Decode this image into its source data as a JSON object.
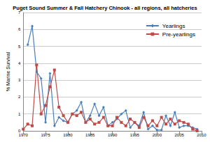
{
  "chart_data": {
    "type": "line",
    "title": "Puget Sound Summer & Fall Hatchery Chinook - all regions, all hatcheries",
    "y_label": "% Marine Survival",
    "x": [
      1970,
      1971,
      1972,
      1973,
      1974,
      1975,
      1976,
      1977,
      1978,
      1979,
      1980,
      1981,
      1982,
      1983,
      1984,
      1985,
      1986,
      1987,
      1988,
      1989,
      1990,
      1991,
      1992,
      1993,
      1994,
      1995,
      1996,
      1997,
      1998,
      1999,
      2000,
      2001,
      2002,
      2003,
      2004,
      2005,
      2006,
      2007,
      2008,
      2009
    ],
    "series": [
      {
        "name": "Yearlings",
        "color": "#4a7ebb",
        "marker": "diamond",
        "line_style": "solid",
        "values": [
          null,
          5.1,
          6.2,
          3.5,
          3.1,
          0.5,
          3.4,
          0.3,
          0.8,
          0.6,
          0.5,
          1.0,
          1.2,
          1.7,
          0.5,
          0.9,
          1.6,
          0.9,
          1.4,
          0.3,
          0.5,
          0.7,
          1.0,
          1.2,
          0.2,
          0.5,
          0.3,
          1.1,
          0.1,
          0.3,
          0.05,
          0.05,
          0.9,
          0.3,
          1.1,
          0.2,
          0.3,
          0.3,
          0.2,
          0.1
        ]
      },
      {
        "name": "Pre-yearlings",
        "color": "#be4b48",
        "marker": "square",
        "line_style": "solid",
        "values": [
          0.1,
          0.4,
          0.3,
          3.9,
          1.0,
          1.5,
          2.6,
          3.6,
          1.4,
          0.9,
          0.5,
          1.0,
          0.9,
          1.1,
          0.5,
          0.7,
          0.4,
          0.5,
          0.8,
          0.3,
          0.3,
          0.8,
          0.5,
          0.3,
          0.7,
          0.5,
          0.2,
          0.8,
          0.3,
          0.6,
          0.3,
          0.8,
          0.4,
          0.7,
          0.4,
          0.6,
          0.5,
          0.4,
          0.1,
          0.0
        ]
      }
    ],
    "xlim": [
      1970,
      2010
    ],
    "xticks": [
      1970,
      1975,
      1980,
      1985,
      1990,
      1995,
      2000,
      2005,
      2010
    ],
    "ylim": [
      0,
      7
    ],
    "yticks": [
      0,
      1,
      2,
      3,
      4,
      5,
      6,
      7
    ],
    "grid": true,
    "legend": "top-right"
  }
}
